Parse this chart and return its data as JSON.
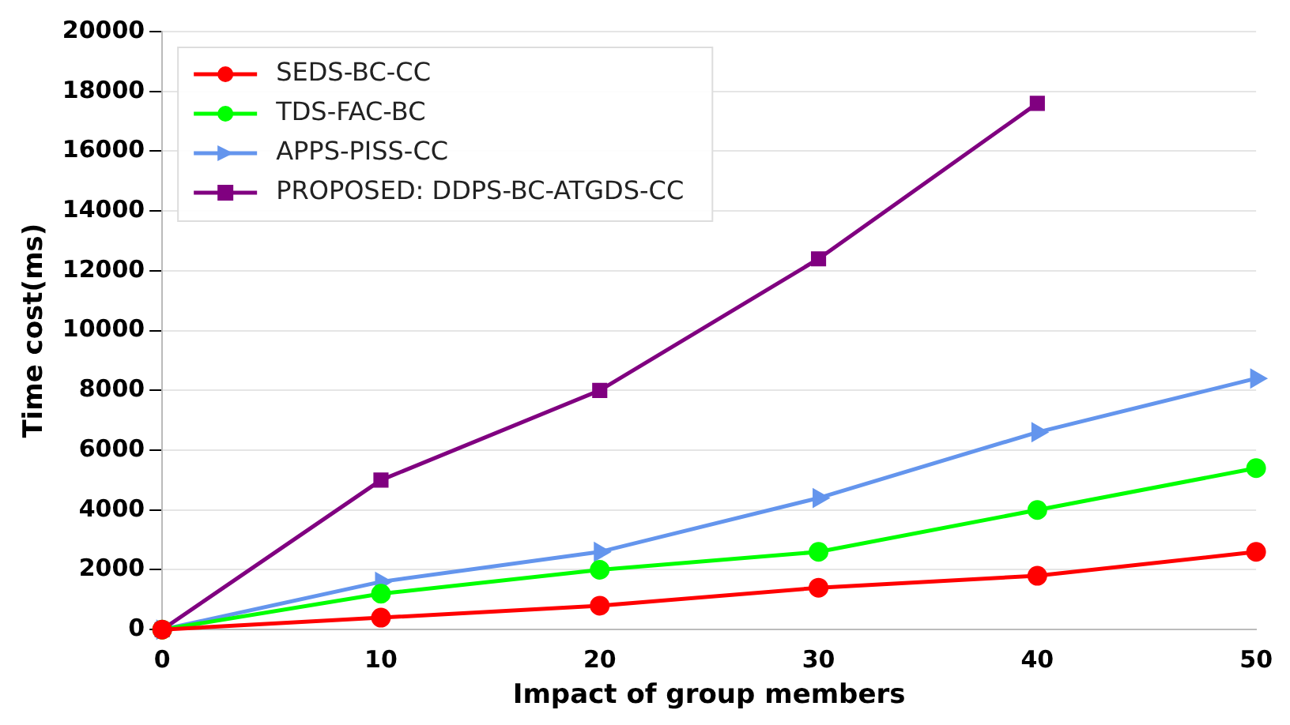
{
  "chart_data": {
    "type": "line",
    "xlabel": "Impact of group members",
    "ylabel": "Time cost(ms)",
    "x": [
      0,
      10,
      20,
      30,
      40,
      50
    ],
    "series": [
      {
        "name": "SEDS-BC-CC",
        "color": "#ff0000",
        "marker": "circle",
        "values": [
          0,
          400,
          800,
          1400,
          1800,
          2600
        ]
      },
      {
        "name": "TDS-FAC-BC",
        "color": "#00ff00",
        "marker": "circle",
        "values": [
          0,
          1200,
          2000,
          2600,
          4000,
          5400
        ]
      },
      {
        "name": "APPS-PISS-CC",
        "color": "#6495ed",
        "marker": "triangle",
        "values": [
          0,
          1600,
          2600,
          4400,
          6600,
          8400
        ]
      },
      {
        "name": "PROPOSED: DDPS-BC-ATGDS-CC",
        "color": "#800080",
        "marker": "square",
        "values": [
          0,
          5000,
          8000,
          12400,
          17600,
          null
        ]
      }
    ],
    "xlim": [
      0,
      50
    ],
    "xticks": [
      0,
      10,
      20,
      30,
      40,
      50
    ],
    "ylim": [
      0,
      20000
    ],
    "yticks": [
      0,
      2000,
      4000,
      6000,
      8000,
      10000,
      12000,
      14000,
      16000,
      18000,
      20000
    ],
    "grid": "y",
    "legend": "top left",
    "line_style": "solid"
  }
}
